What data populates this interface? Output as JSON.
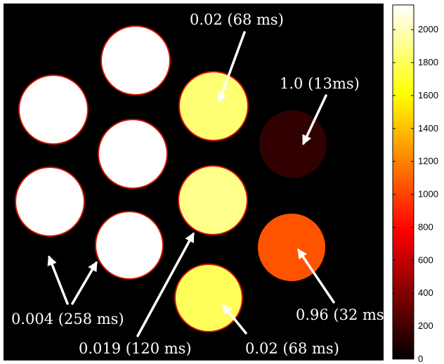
{
  "image": {
    "kind": "MRI phantom image with colorbar",
    "background_color": "#000000"
  },
  "colorbar": {
    "min": 0,
    "max": 2150,
    "ticks": [
      "2000",
      "1800",
      "1600",
      "1400",
      "1200",
      "1000",
      "800",
      "600",
      "400",
      "200",
      "0"
    ],
    "colormap": "hot"
  },
  "vials": [
    {
      "id": "v1",
      "intensity": 2150
    },
    {
      "id": "v2",
      "intensity": 2150
    },
    {
      "id": "v3",
      "intensity": 2150
    },
    {
      "id": "v4",
      "intensity": 2150
    },
    {
      "id": "v5",
      "intensity": 2150
    },
    {
      "id": "v6",
      "intensity": 1850
    },
    {
      "id": "v7",
      "intensity": 1900
    },
    {
      "id": "v8",
      "intensity": 1800
    },
    {
      "id": "v9",
      "intensity": 150
    },
    {
      "id": "v10",
      "intensity": 1050
    }
  ],
  "annotations": {
    "top_center": "0.02 (68 ms)",
    "top_right": "1.0 (13ms)",
    "bottom_left": "0.004 (258 ms)",
    "bottom_center_left": "0.019 (120 ms)",
    "bottom_center_right": "0.02 (68 ms)",
    "bottom_right": "0.96 (32 ms)"
  }
}
